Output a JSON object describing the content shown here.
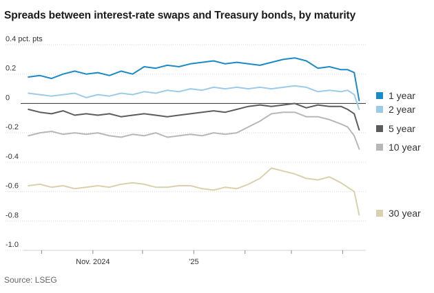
{
  "title": "Spreads between interest-rate swaps and Treasury bonds, by maturity",
  "source": "Source: LSEG",
  "legend": [
    {
      "label": "1 year",
      "color": "#1a8ac6"
    },
    {
      "label": "2 year",
      "color": "#9ccbe8"
    },
    {
      "label": "5 year",
      "color": "#5c5c5c"
    },
    {
      "label": "10 year",
      "color": "#b7b7b7"
    },
    {
      "label": "30 year",
      "color": "#d9d1ad"
    }
  ],
  "chart_data": {
    "type": "line",
    "title": "Spreads between interest-rate swaps and Treasury bonds, by maturity",
    "ylabel": "pct. pts",
    "ylim": [
      -1.0,
      0.4
    ],
    "yticks": [
      0.4,
      0.2,
      0,
      -0.2,
      -0.4,
      -0.6,
      -0.8,
      -1.0
    ],
    "ytick_labels": [
      "0.4 pct. pts",
      "0.2",
      "0",
      "-0.2",
      "-0.4",
      "-0.6",
      "-0.8",
      "-1.0"
    ],
    "xlim": [
      "2024-09-20",
      "2025-04-15"
    ],
    "xticks": [
      "2024-10-01",
      "2024-11-01",
      "2024-12-01",
      "2025-01-01",
      "2025-02-01",
      "2025-03-01",
      "2025-04-01"
    ],
    "xtick_labels": [
      "",
      "Nov. 2024",
      "",
      "’25",
      "",
      "",
      ""
    ],
    "grid": true,
    "legend_position": "right",
    "x": [
      "2024-09-23",
      "2024-09-30",
      "2024-10-07",
      "2024-10-14",
      "2024-10-21",
      "2024-10-28",
      "2024-11-04",
      "2024-11-11",
      "2024-11-18",
      "2024-11-25",
      "2024-12-02",
      "2024-12-09",
      "2024-12-16",
      "2024-12-23",
      "2024-12-30",
      "2025-01-06",
      "2025-01-13",
      "2025-01-20",
      "2025-01-27",
      "2025-02-03",
      "2025-02-10",
      "2025-02-17",
      "2025-02-24",
      "2025-03-03",
      "2025-03-10",
      "2025-03-17",
      "2025-03-24",
      "2025-03-31",
      "2025-04-04",
      "2025-04-08",
      "2025-04-11"
    ],
    "series": [
      {
        "name": "1 year",
        "color": "#1a8ac6",
        "values": [
          0.18,
          0.19,
          0.17,
          0.2,
          0.22,
          0.2,
          0.21,
          0.19,
          0.22,
          0.2,
          0.25,
          0.24,
          0.26,
          0.25,
          0.27,
          0.28,
          0.29,
          0.27,
          0.28,
          0.27,
          0.26,
          0.28,
          0.3,
          0.31,
          0.29,
          0.24,
          0.25,
          0.23,
          0.23,
          0.21,
          0.02
        ]
      },
      {
        "name": "2 year",
        "color": "#9ccbe8",
        "values": [
          0.07,
          0.06,
          0.05,
          0.06,
          0.07,
          0.04,
          0.06,
          0.05,
          0.07,
          0.06,
          0.08,
          0.07,
          0.09,
          0.08,
          0.1,
          0.09,
          0.11,
          0.1,
          0.11,
          0.1,
          0.11,
          0.1,
          0.11,
          0.12,
          0.11,
          0.08,
          0.09,
          0.08,
          0.09,
          0.06,
          -0.04
        ]
      },
      {
        "name": "5 year",
        "color": "#5c5c5c",
        "values": [
          -0.04,
          -0.06,
          -0.07,
          -0.05,
          -0.08,
          -0.07,
          -0.08,
          -0.07,
          -0.09,
          -0.08,
          -0.07,
          -0.08,
          -0.09,
          -0.08,
          -0.07,
          -0.06,
          -0.05,
          -0.06,
          -0.04,
          -0.02,
          -0.01,
          -0.02,
          -0.01,
          0.0,
          -0.03,
          -0.01,
          -0.02,
          -0.02,
          -0.04,
          -0.07,
          -0.18
        ]
      },
      {
        "name": "10 year",
        "color": "#b7b7b7",
        "values": [
          -0.22,
          -0.2,
          -0.19,
          -0.21,
          -0.2,
          -0.21,
          -0.2,
          -0.22,
          -0.23,
          -0.21,
          -0.22,
          -0.2,
          -0.23,
          -0.22,
          -0.21,
          -0.22,
          -0.2,
          -0.21,
          -0.2,
          -0.16,
          -0.12,
          -0.07,
          -0.06,
          -0.06,
          -0.09,
          -0.09,
          -0.11,
          -0.14,
          -0.16,
          -0.22,
          -0.31
        ]
      },
      {
        "name": "30 year",
        "color": "#d9d1ad",
        "values": [
          -0.56,
          -0.55,
          -0.57,
          -0.56,
          -0.58,
          -0.57,
          -0.56,
          -0.57,
          -0.55,
          -0.54,
          -0.55,
          -0.57,
          -0.57,
          -0.56,
          -0.56,
          -0.58,
          -0.59,
          -0.57,
          -0.58,
          -0.55,
          -0.51,
          -0.44,
          -0.46,
          -0.48,
          -0.51,
          -0.52,
          -0.5,
          -0.54,
          -0.57,
          -0.6,
          -0.76
        ]
      }
    ]
  }
}
